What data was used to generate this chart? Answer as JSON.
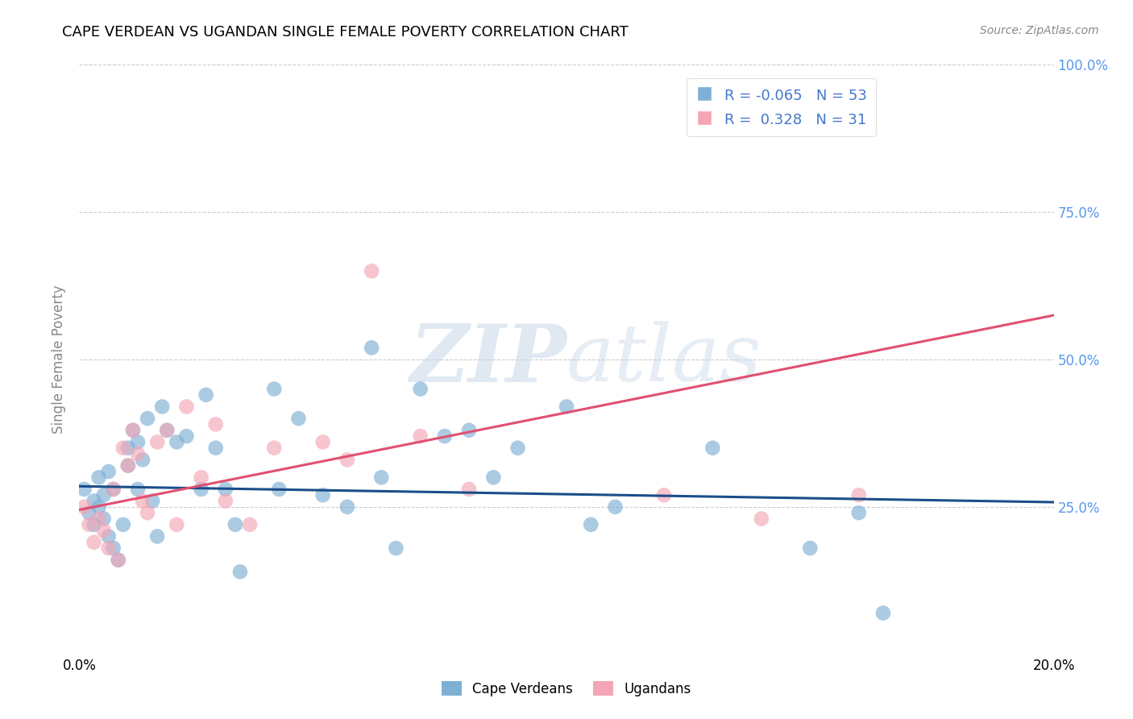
{
  "title": "CAPE VERDEAN VS UGANDAN SINGLE FEMALE POVERTY CORRELATION CHART",
  "source": "Source: ZipAtlas.com",
  "ylabel": "Single Female Poverty",
  "xlim": [
    0.0,
    0.2
  ],
  "ylim": [
    0.0,
    1.0
  ],
  "y_tick_labels_right": [
    "",
    "25.0%",
    "50.0%",
    "75.0%",
    "100.0%"
  ],
  "cape_verdean_color": "#7EB0D5",
  "ugandan_color": "#F4A6B5",
  "cape_verdean_line_color": "#1A4E8A",
  "ugandan_line_color": "#E05070",
  "R_cape": -0.065,
  "N_cape": 53,
  "R_uganda": 0.328,
  "N_uganda": 31,
  "legend_label_cape": "Cape Verdeans",
  "legend_label_uganda": "Ugandans",
  "watermark_zip": "ZIP",
  "watermark_atlas": "atlas",
  "blue_line": [
    0.0,
    0.285,
    0.2,
    0.258
  ],
  "pink_line": [
    0.0,
    0.245,
    0.2,
    0.575
  ],
  "cape_verdean_x": [
    0.001,
    0.002,
    0.003,
    0.003,
    0.004,
    0.004,
    0.005,
    0.005,
    0.006,
    0.006,
    0.007,
    0.007,
    0.008,
    0.009,
    0.01,
    0.01,
    0.011,
    0.012,
    0.012,
    0.013,
    0.014,
    0.015,
    0.016,
    0.017,
    0.018,
    0.02,
    0.022,
    0.025,
    0.026,
    0.028,
    0.03,
    0.032,
    0.033,
    0.04,
    0.041,
    0.045,
    0.05,
    0.055,
    0.06,
    0.062,
    0.065,
    0.07,
    0.075,
    0.08,
    0.085,
    0.09,
    0.1,
    0.105,
    0.11,
    0.13,
    0.15,
    0.16,
    0.165
  ],
  "cape_verdean_y": [
    0.28,
    0.24,
    0.26,
    0.22,
    0.3,
    0.25,
    0.27,
    0.23,
    0.31,
    0.2,
    0.28,
    0.18,
    0.16,
    0.22,
    0.32,
    0.35,
    0.38,
    0.36,
    0.28,
    0.33,
    0.4,
    0.26,
    0.2,
    0.42,
    0.38,
    0.36,
    0.37,
    0.28,
    0.44,
    0.35,
    0.28,
    0.22,
    0.14,
    0.45,
    0.28,
    0.4,
    0.27,
    0.25,
    0.52,
    0.3,
    0.18,
    0.45,
    0.37,
    0.38,
    0.3,
    0.35,
    0.42,
    0.22,
    0.25,
    0.35,
    0.18,
    0.24,
    0.07
  ],
  "ugandan_x": [
    0.001,
    0.002,
    0.003,
    0.004,
    0.005,
    0.006,
    0.007,
    0.008,
    0.009,
    0.01,
    0.011,
    0.012,
    0.013,
    0.014,
    0.016,
    0.018,
    0.02,
    0.022,
    0.025,
    0.028,
    0.03,
    0.035,
    0.04,
    0.05,
    0.055,
    0.06,
    0.07,
    0.08,
    0.12,
    0.14,
    0.16
  ],
  "ugandan_y": [
    0.25,
    0.22,
    0.19,
    0.23,
    0.21,
    0.18,
    0.28,
    0.16,
    0.35,
    0.32,
    0.38,
    0.34,
    0.26,
    0.24,
    0.36,
    0.38,
    0.22,
    0.42,
    0.3,
    0.39,
    0.26,
    0.22,
    0.35,
    0.36,
    0.33,
    0.65,
    0.37,
    0.28,
    0.27,
    0.23,
    0.27
  ]
}
